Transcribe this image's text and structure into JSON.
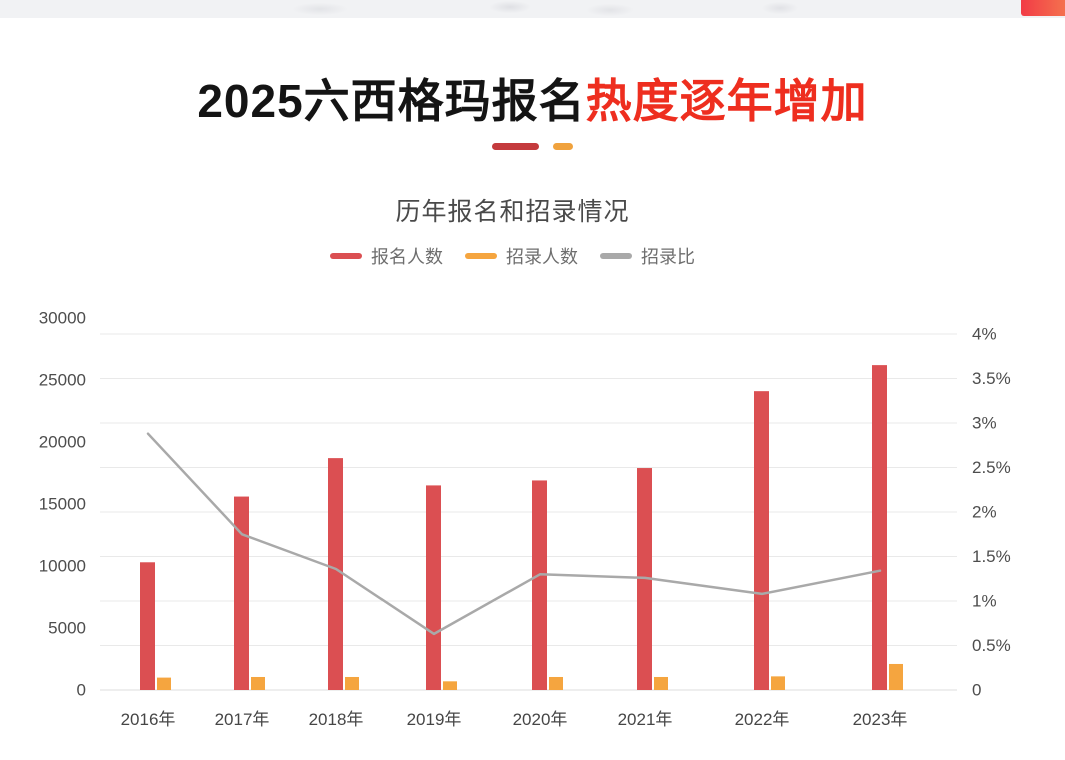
{
  "title": {
    "black_part": "2025六西格玛报名",
    "red_part": "热度逐年增加",
    "red_color": "#ee2e1f",
    "divider_red_color": "#c43a3d",
    "divider_orange_color": "#f0a23d"
  },
  "chart_data": {
    "type": "combo-bar-line",
    "title": "历年报名和招录情况",
    "categories": [
      "2016年",
      "2017年",
      "2018年",
      "2019年",
      "2020年",
      "2021年",
      "2022年",
      "2023年"
    ],
    "series": [
      {
        "name": "报名人数",
        "type": "bar",
        "y_axis": "left",
        "color": "#db4f52",
        "values": [
          10300,
          15600,
          18700,
          16500,
          16900,
          17900,
          24100,
          26200
        ]
      },
      {
        "name": "招录人数",
        "type": "bar",
        "y_axis": "left",
        "color": "#f5a53f",
        "values": [
          1000,
          1050,
          1050,
          700,
          1050,
          1050,
          1100,
          2100
        ]
      },
      {
        "name": "招录比",
        "type": "line",
        "y_axis": "right",
        "unit": "%",
        "color": "#a9a9a9",
        "values": [
          2.88,
          1.75,
          1.36,
          0.63,
          1.3,
          1.26,
          1.08,
          1.34
        ]
      }
    ],
    "left_axis": {
      "min": 0,
      "max": 30000,
      "tick_step": 5000,
      "tick_labels": [
        "30000",
        "25000",
        "20000",
        "15000",
        "10000",
        "5000",
        "0"
      ]
    },
    "right_axis": {
      "min": 0,
      "max": 4,
      "tick_step": 0.5,
      "unit": "%",
      "tick_labels": [
        "4%",
        "3.5%",
        "3%",
        "2.5%",
        "2%",
        "1.5%",
        "1%",
        "0.5%",
        "0"
      ]
    },
    "grid": true,
    "legend_position": "top",
    "legend": [
      "报名人数",
      "招录人数",
      "招录比"
    ],
    "grid_color": "#e9e9e9",
    "axis_line_color": "#dcdcdc"
  }
}
